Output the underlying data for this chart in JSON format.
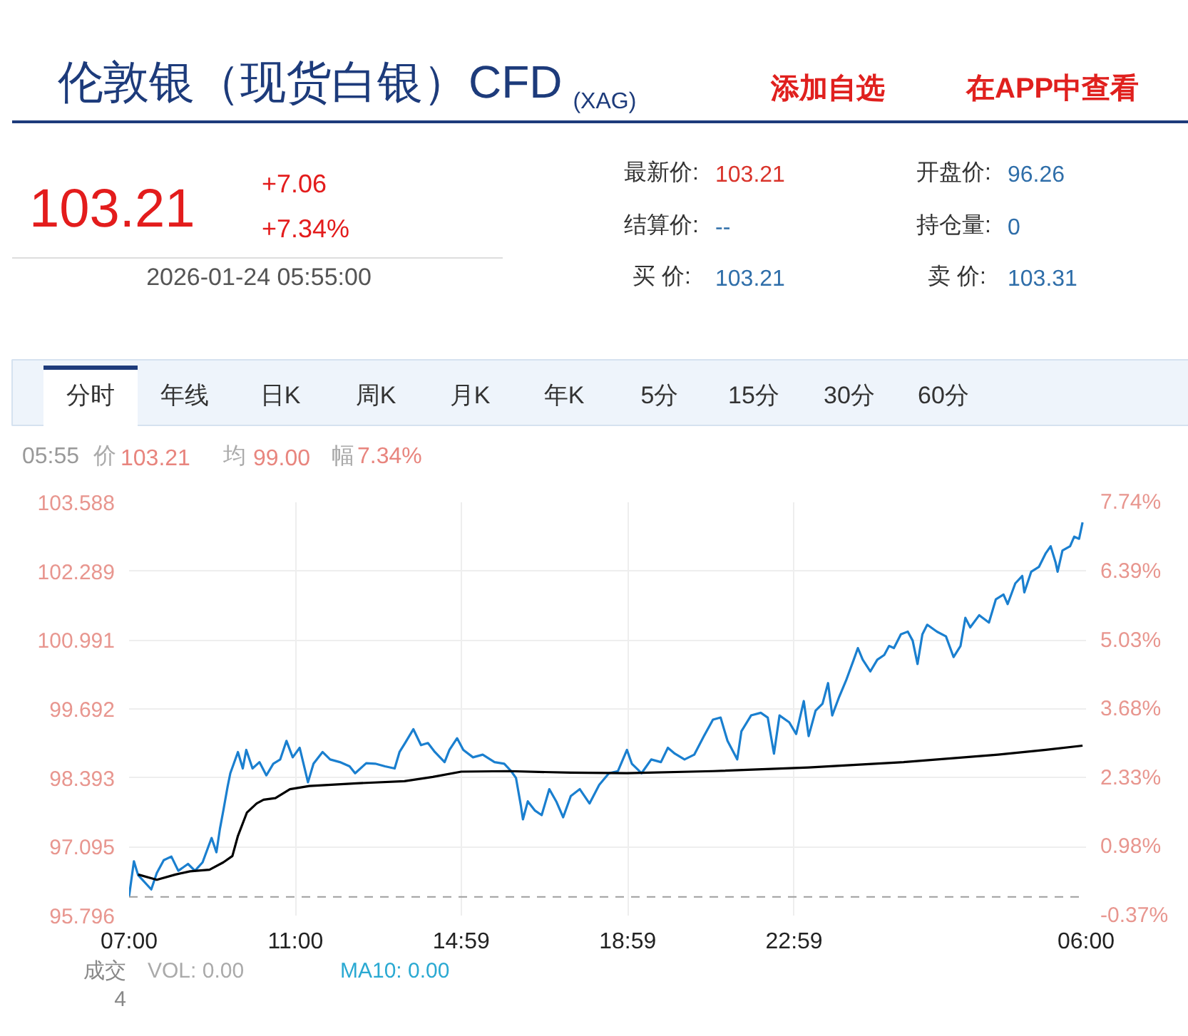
{
  "chart_data": {
    "type": "line",
    "title": "伦敦银（现货白银）CFD$_{(XAG)}$",
    "annotations": [
      "添加自选",
      "在APP中查看",
      "103.21",
      "+7.06",
      "+7.34%",
      "2026-01-24 05:55:00",
      "最新价:",
      "103.21",
      "开盘价:",
      "96.26",
      "结算价:",
      "--",
      "持仓量:",
      "0",
      "买  价:",
      "103.21",
      "卖  价:",
      "103.31",
      "分时",
      "年线",
      "日K",
      "周K",
      "月K",
      "年K",
      "5分",
      "15分",
      "30分",
      "60分",
      "05:55",
      "价",
      "103.21",
      "均",
      "99.00",
      "幅",
      "7.34%",
      "成交",
      "4",
      "VOL: 0.00",
      "MA10: 0.00"
    ],
    "series": [
      {
        "color": "#1a7fcf",
        "x": [
          "2026-01-23T07:00",
          "2026-01-23T07:07",
          "2026-01-23T07:13",
          "2026-01-23T07:32",
          "2026-01-23T07:40",
          "2026-01-23T07:50",
          "2026-01-23T08:01",
          "2026-01-23T08:11",
          "2026-01-23T08:25",
          "2026-01-23T08:35",
          "2026-01-23T08:46",
          "2026-01-23T08:59",
          "2026-01-23T09:06",
          "2026-01-23T09:11",
          "2026-01-23T09:16",
          "2026-01-23T09:22",
          "2026-01-23T09:26",
          "2026-01-23T09:31",
          "2026-01-23T09:37",
          "2026-01-23T09:44",
          "2026-01-23T09:49",
          "2026-01-23T09:58",
          "2026-01-23T10:08",
          "2026-01-23T10:18",
          "2026-01-23T10:28",
          "2026-01-23T10:38",
          "2026-01-23T10:47",
          "2026-01-23T10:56",
          "2026-01-23T11:06",
          "2026-01-23T11:18",
          "2026-01-23T11:26",
          "2026-01-23T11:39",
          "2026-01-23T11:50",
          "2026-01-23T12:04",
          "2026-01-23T12:18",
          "2026-01-23T12:26",
          "2026-01-23T12:42",
          "2026-01-23T12:55",
          "2026-01-23T13:09",
          "2026-01-23T13:23",
          "2026-01-23T13:30",
          "2026-01-23T13:38",
          "2026-01-23T13:50",
          "2026-01-23T14:01",
          "2026-01-23T14:11",
          "2026-01-23T14:21",
          "2026-01-23T14:35",
          "2026-01-23T14:42",
          "2026-01-23T14:53",
          "2026-01-23T15:02",
          "2026-01-23T15:16",
          "2026-01-23T15:30",
          "2026-01-23T15:47",
          "2026-01-23T16:01",
          "2026-01-23T16:11",
          "2026-01-23T16:18",
          "2026-01-23T16:25",
          "2026-01-23T16:28",
          "2026-01-23T16:35",
          "2026-01-23T16:45",
          "2026-01-23T16:55",
          "2026-01-23T17:06",
          "2026-01-23T17:16",
          "2026-01-23T17:26",
          "2026-01-23T17:37",
          "2026-01-23T17:50",
          "2026-01-23T18:04",
          "2026-01-23T18:18",
          "2026-01-23T18:32",
          "2026-01-23T18:45",
          "2026-01-23T18:58",
          "2026-01-23T19:05",
          "2026-01-23T19:19",
          "2026-01-23T19:33",
          "2026-01-23T19:47",
          "2026-01-23T19:57",
          "2026-01-23T20:07",
          "2026-01-23T20:21",
          "2026-01-23T20:35",
          "2026-01-23T20:49",
          "2026-01-23T21:02",
          "2026-01-23T21:13",
          "2026-01-23T21:23",
          "2026-01-23T21:37",
          "2026-01-23T21:43",
          "2026-01-23T21:57",
          "2026-01-23T22:11",
          "2026-01-23T22:21",
          "2026-01-23T22:30",
          "2026-01-23T22:38",
          "2026-01-23T22:52",
          "2026-01-23T23:02",
          "2026-01-23T23:13",
          "2026-01-23T23:20",
          "2026-01-23T23:30",
          "2026-01-23T23:40",
          "2026-01-23T23:48",
          "2026-01-23T23:54",
          "2026-01-24T00:04",
          "2026-01-24T00:14",
          "2026-01-24T00:25",
          "2026-01-24T00:31",
          "2026-01-24T00:38",
          "2026-01-24T00:49",
          "2026-01-24T00:59",
          "2026-01-24T01:09",
          "2026-01-24T01:16",
          "2026-01-24T01:23",
          "2026-01-24T01:33",
          "2026-01-24T01:43",
          "2026-01-24T01:50",
          "2026-01-24T01:57",
          "2026-01-24T02:04",
          "2026-01-24T02:11",
          "2026-01-24T02:25",
          "2026-01-24T02:38",
          "2026-01-24T02:49",
          "2026-01-24T02:59",
          "2026-01-24T03:06",
          "2026-01-24T03:13",
          "2026-01-24T03:26",
          "2026-01-24T03:40",
          "2026-01-24T03:50",
          "2026-01-24T04:01",
          "2026-01-24T04:07",
          "2026-01-24T04:18",
          "2026-01-24T04:28",
          "2026-01-24T04:31",
          "2026-01-24T04:41",
          "2026-01-24T04:52",
          "2026-01-24T05:02",
          "2026-01-24T05:09",
          "2026-01-24T05:16",
          "2026-01-24T05:19",
          "2026-01-24T05:26",
          "2026-01-24T05:37",
          "2026-01-24T05:43",
          "2026-01-24T05:50",
          "2026-01-24T05:55"
        ],
        "values": [
          96.16,
          96.82,
          96.56,
          96.29,
          96.6,
          96.84,
          96.91,
          96.64,
          96.77,
          96.64,
          96.8,
          97.26,
          96.99,
          97.43,
          97.78,
          98.22,
          98.48,
          98.66,
          98.88,
          98.57,
          98.92,
          98.57,
          98.69,
          98.44,
          98.66,
          98.74,
          99.09,
          98.78,
          98.96,
          98.31,
          98.66,
          98.88,
          98.74,
          98.69,
          98.61,
          98.48,
          98.67,
          98.66,
          98.61,
          98.57,
          98.88,
          99.05,
          99.31,
          99.01,
          99.05,
          98.88,
          98.69,
          98.92,
          99.14,
          98.92,
          98.78,
          98.83,
          98.69,
          98.66,
          98.52,
          98.39,
          97.87,
          97.61,
          97.95,
          97.78,
          97.69,
          98.18,
          97.95,
          97.65,
          98.05,
          98.18,
          97.91,
          98.26,
          98.48,
          98.52,
          98.92,
          98.66,
          98.48,
          98.74,
          98.69,
          98.96,
          98.85,
          98.74,
          98.83,
          99.18,
          99.49,
          99.53,
          99.09,
          98.74,
          99.27,
          99.57,
          99.62,
          99.53,
          98.85,
          99.57,
          99.44,
          99.22,
          99.84,
          99.18,
          99.66,
          99.79,
          100.18,
          99.57,
          99.92,
          100.23,
          100.62,
          100.84,
          100.62,
          100.4,
          100.62,
          100.71,
          100.88,
          100.84,
          101.1,
          101.15,
          100.98,
          100.54,
          101.1,
          101.28,
          101.15,
          101.06,
          100.67,
          100.88,
          101.41,
          101.23,
          101.46,
          101.32,
          101.76,
          101.85,
          101.67,
          102.06,
          102.2,
          101.89,
          102.28,
          102.37,
          102.63,
          102.76,
          102.46,
          102.28,
          102.68,
          102.76,
          102.94,
          102.9,
          103.21
        ]
      },
      {
        "color": "#000000",
        "x": [
          "2026-01-23T07:13",
          "2026-01-23T07:40",
          "2026-01-23T08:07",
          "2026-01-23T08:28",
          "2026-01-23T08:56",
          "2026-01-23T09:16",
          "2026-01-23T09:29",
          "2026-01-23T09:37",
          "2026-01-23T09:50",
          "2026-01-23T10:04",
          "2026-01-23T10:14",
          "2026-01-23T10:31",
          "2026-01-23T10:52",
          "2026-01-23T11:20",
          "2026-01-23T12:28",
          "2026-01-23T13:37",
          "2026-01-23T14:18",
          "2026-01-23T14:59",
          "2026-01-23T16:08",
          "2026-01-23T17:37",
          "2026-01-23T18:58",
          "2026-01-23T21:02",
          "2026-01-23T23:20",
          "2026-01-24T01:37",
          "2026-01-24T03:53",
          "2026-01-24T05:02",
          "2026-01-24T05:55"
        ],
        "values": [
          96.57,
          96.47,
          96.57,
          96.63,
          96.66,
          96.8,
          96.92,
          97.3,
          97.74,
          97.91,
          97.98,
          98.01,
          98.18,
          98.24,
          98.29,
          98.33,
          98.41,
          98.51,
          98.52,
          98.49,
          98.48,
          98.52,
          98.59,
          98.69,
          98.83,
          98.92,
          99.0
        ]
      }
    ],
    "xlim": [
      "2026-01-23T07:00",
      "2026-01-24T06:00"
    ],
    "xticks": [
      {
        "value": "2026-01-23T07:00",
        "label": "07:00"
      },
      {
        "value": "2026-01-23T11:00",
        "label": "11:00"
      },
      {
        "value": "2026-01-23T14:59",
        "label": "14:59"
      },
      {
        "value": "2026-01-23T18:59",
        "label": "18:59"
      },
      {
        "value": "2026-01-23T22:59",
        "label": "22:59"
      },
      {
        "value": "2026-01-24T06:00",
        "label": "06:00"
      }
    ],
    "ylim": [
      95.796,
      103.588
    ],
    "yticks": [
      95.796,
      97.095,
      98.393,
      99.692,
      100.991,
      102.289,
      103.588
    ],
    "y2lim": [
      -0.37,
      7.74
    ],
    "y2ticks": [
      {
        "value": -0.37,
        "label": "-0.37%"
      },
      {
        "value": 0.98,
        "label": "0.98%"
      },
      {
        "value": 2.33,
        "label": "2.33%"
      },
      {
        "value": 3.68,
        "label": "3.68%"
      },
      {
        "value": 5.03,
        "label": "5.03%"
      },
      {
        "value": 6.39,
        "label": "6.39%"
      },
      {
        "value": 7.74,
        "label": "7.74%"
      }
    ],
    "ref_lines": [
      {
        "axis": "y",
        "value": 96.15,
        "color": "#9e9e9e",
        "line_style": "dashed"
      }
    ],
    "grid": true
  }
}
